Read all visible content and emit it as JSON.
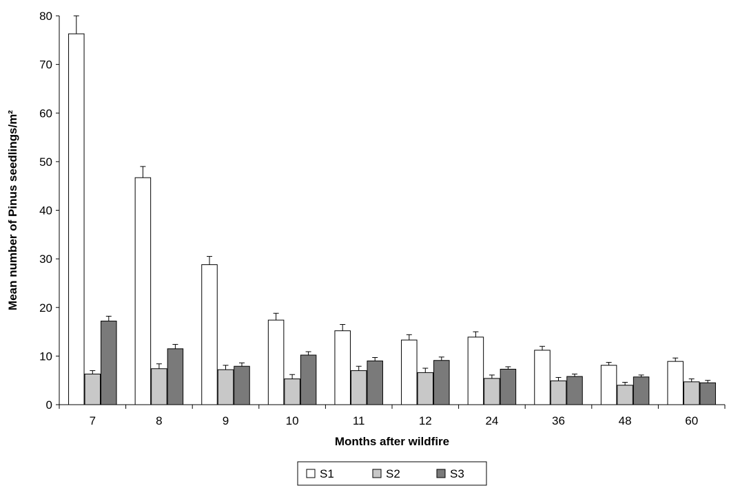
{
  "chart_data": {
    "type": "bar",
    "title": "",
    "xlabel": "Months after wildfire",
    "ylabel": "Mean number of Pinus seedlings/m²",
    "categories": [
      "7",
      "8",
      "9",
      "10",
      "11",
      "12",
      "24",
      "36",
      "48",
      "60"
    ],
    "ylim": [
      0,
      80
    ],
    "yticks": [
      0,
      10,
      20,
      30,
      40,
      50,
      60,
      70,
      80
    ],
    "grid": false,
    "legend_position": "bottom",
    "error_bars": true,
    "series": [
      {
        "name": "S1",
        "color": "#ffffff",
        "values": [
          76.3,
          46.7,
          28.8,
          17.4,
          15.2,
          13.3,
          13.9,
          11.2,
          8.1,
          8.9
        ],
        "errors": [
          3.7,
          2.3,
          1.7,
          1.4,
          1.3,
          1.1,
          1.1,
          0.8,
          0.6,
          0.7
        ]
      },
      {
        "name": "S2",
        "color": "#c8c8c8",
        "values": [
          6.3,
          7.4,
          7.2,
          5.3,
          7.0,
          6.6,
          5.4,
          4.9,
          4.0,
          4.7
        ],
        "errors": [
          0.7,
          1.0,
          0.9,
          0.9,
          0.9,
          0.9,
          0.7,
          0.7,
          0.6,
          0.6
        ]
      },
      {
        "name": "S3",
        "color": "#7a7a7a",
        "values": [
          17.2,
          11.5,
          7.9,
          10.2,
          9.0,
          9.1,
          7.3,
          5.8,
          5.7,
          4.5
        ],
        "errors": [
          1.0,
          0.9,
          0.7,
          0.7,
          0.7,
          0.7,
          0.5,
          0.5,
          0.4,
          0.5
        ]
      }
    ]
  }
}
